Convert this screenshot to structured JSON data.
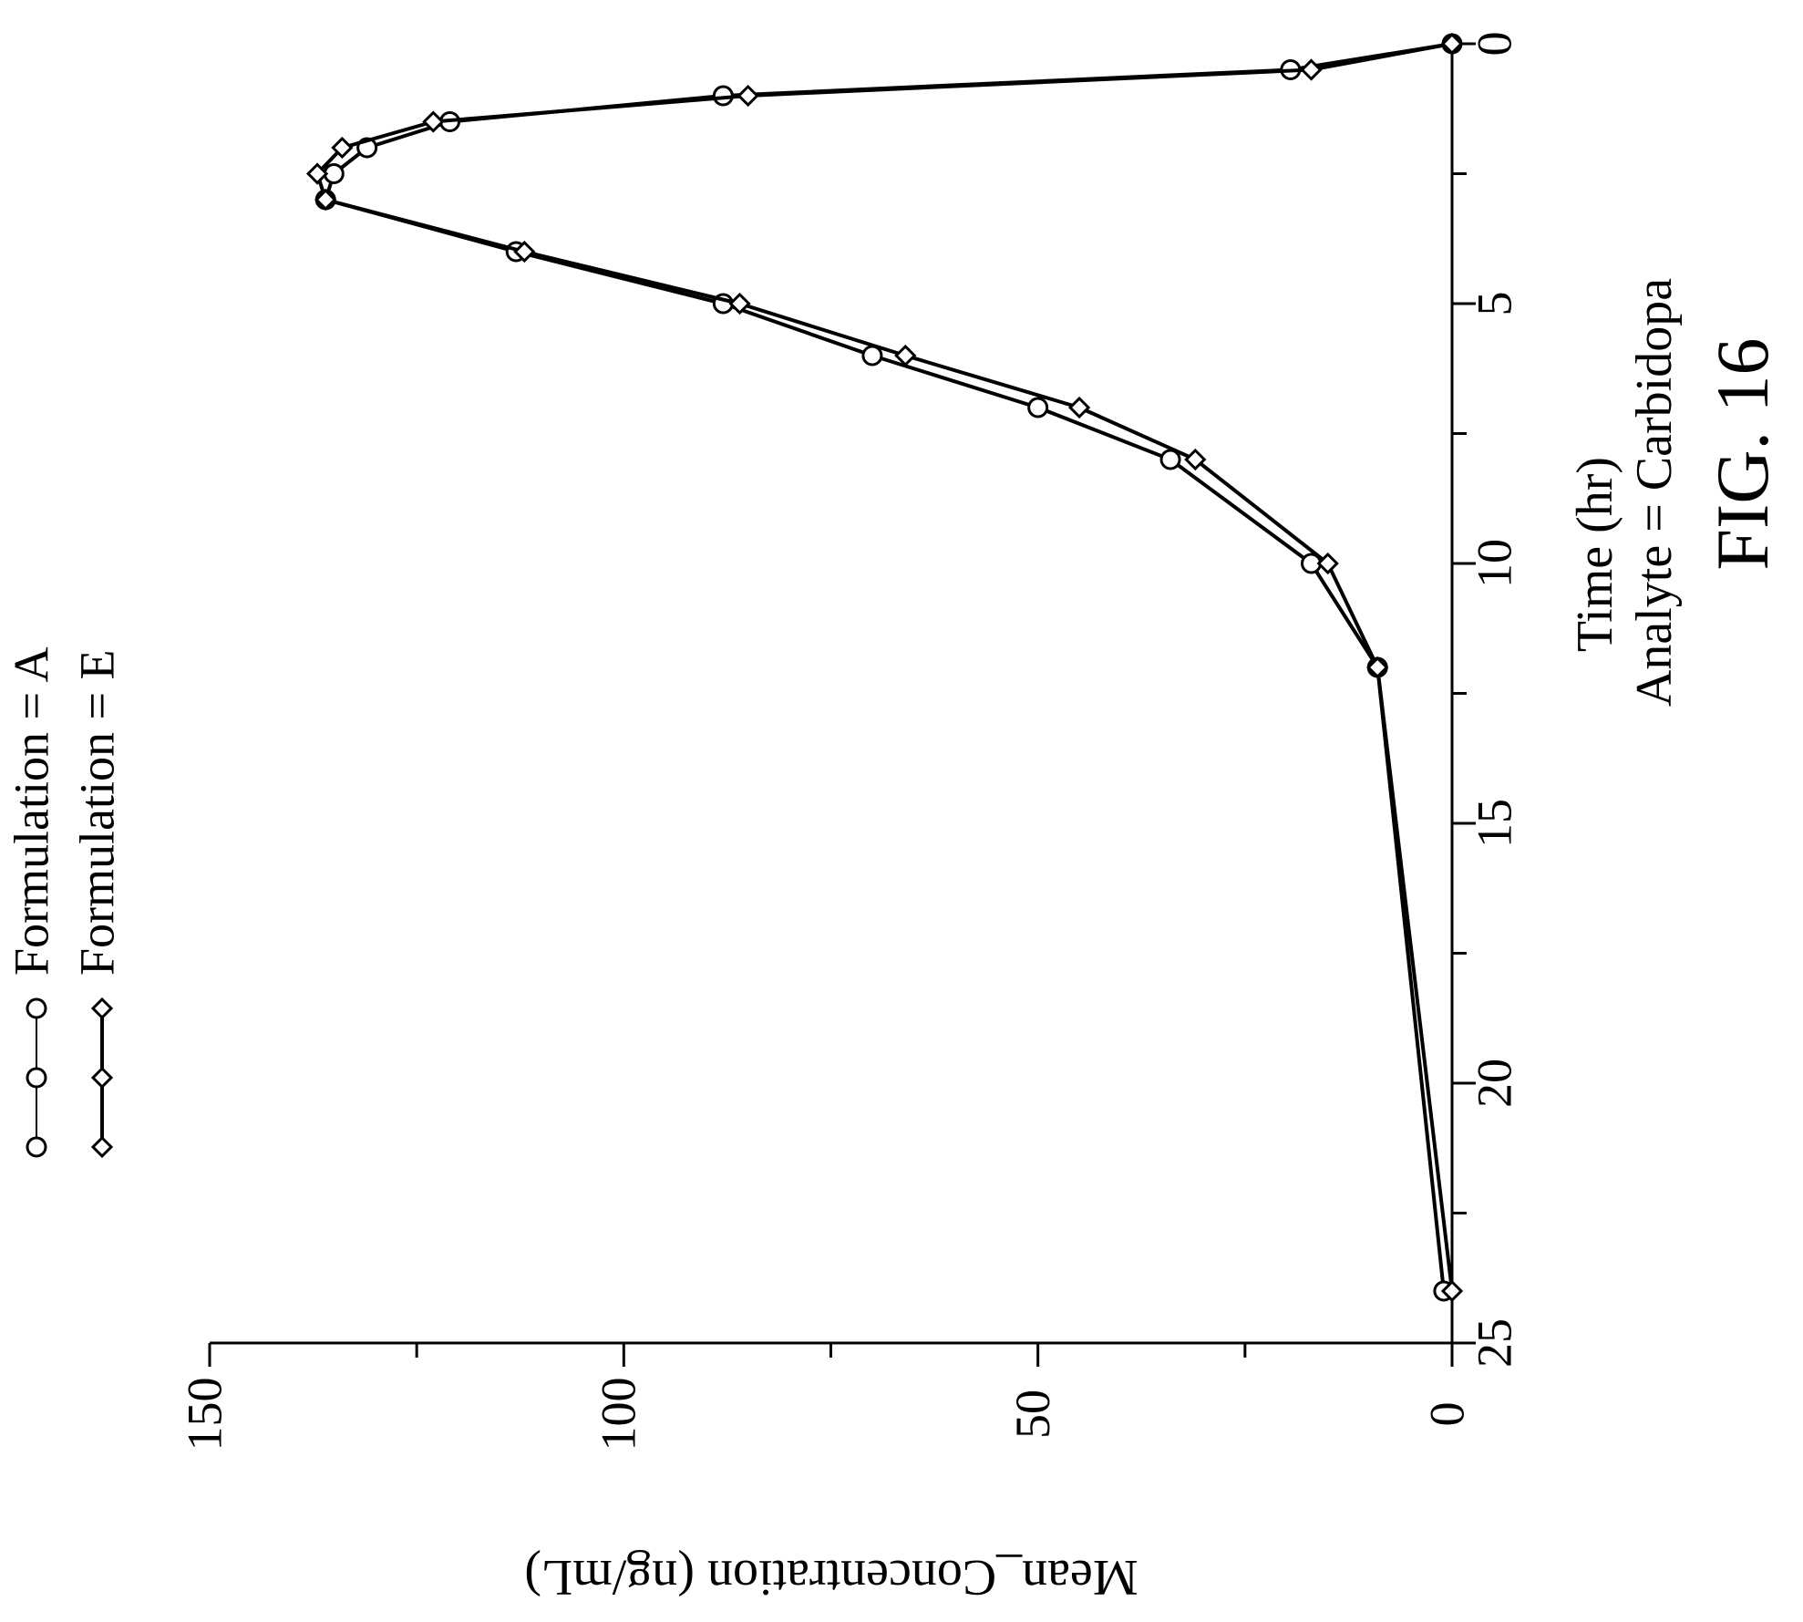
{
  "figure_label": "FIG. 16",
  "chart_data": {
    "type": "line",
    "title": "",
    "xlabel": "Time (hr)",
    "xlabel_sub": "Analyte = Carbidopa",
    "ylabel": "Mean_Concentration (ng/mL)",
    "xlim": [
      0,
      25
    ],
    "ylim": [
      0,
      150
    ],
    "x_ticks": [
      0,
      5,
      10,
      15,
      20,
      25
    ],
    "y_ticks": [
      0,
      50,
      100,
      150
    ],
    "orientation": "rotated-90-counterclockwise",
    "grid": false,
    "legend_position": "top-left",
    "series": [
      {
        "name": "Formulation = A",
        "marker": "circle",
        "x": [
          0,
          0.5,
          1,
          1.5,
          2,
          2.5,
          3,
          4,
          5,
          6,
          7,
          8,
          10,
          12,
          24
        ],
        "y": [
          0,
          19.5,
          88,
          121,
          131,
          135,
          136,
          113,
          88,
          70,
          50,
          34,
          17,
          9,
          1
        ]
      },
      {
        "name": "Formulation = E",
        "marker": "diamond",
        "x": [
          0,
          0.5,
          1,
          1.5,
          2,
          2.5,
          3,
          4,
          5,
          6,
          7,
          8,
          10,
          12,
          24
        ],
        "y": [
          0,
          17,
          85,
          123,
          134,
          137,
          136,
          112,
          86,
          66,
          45,
          31,
          15,
          9,
          0
        ]
      }
    ]
  }
}
